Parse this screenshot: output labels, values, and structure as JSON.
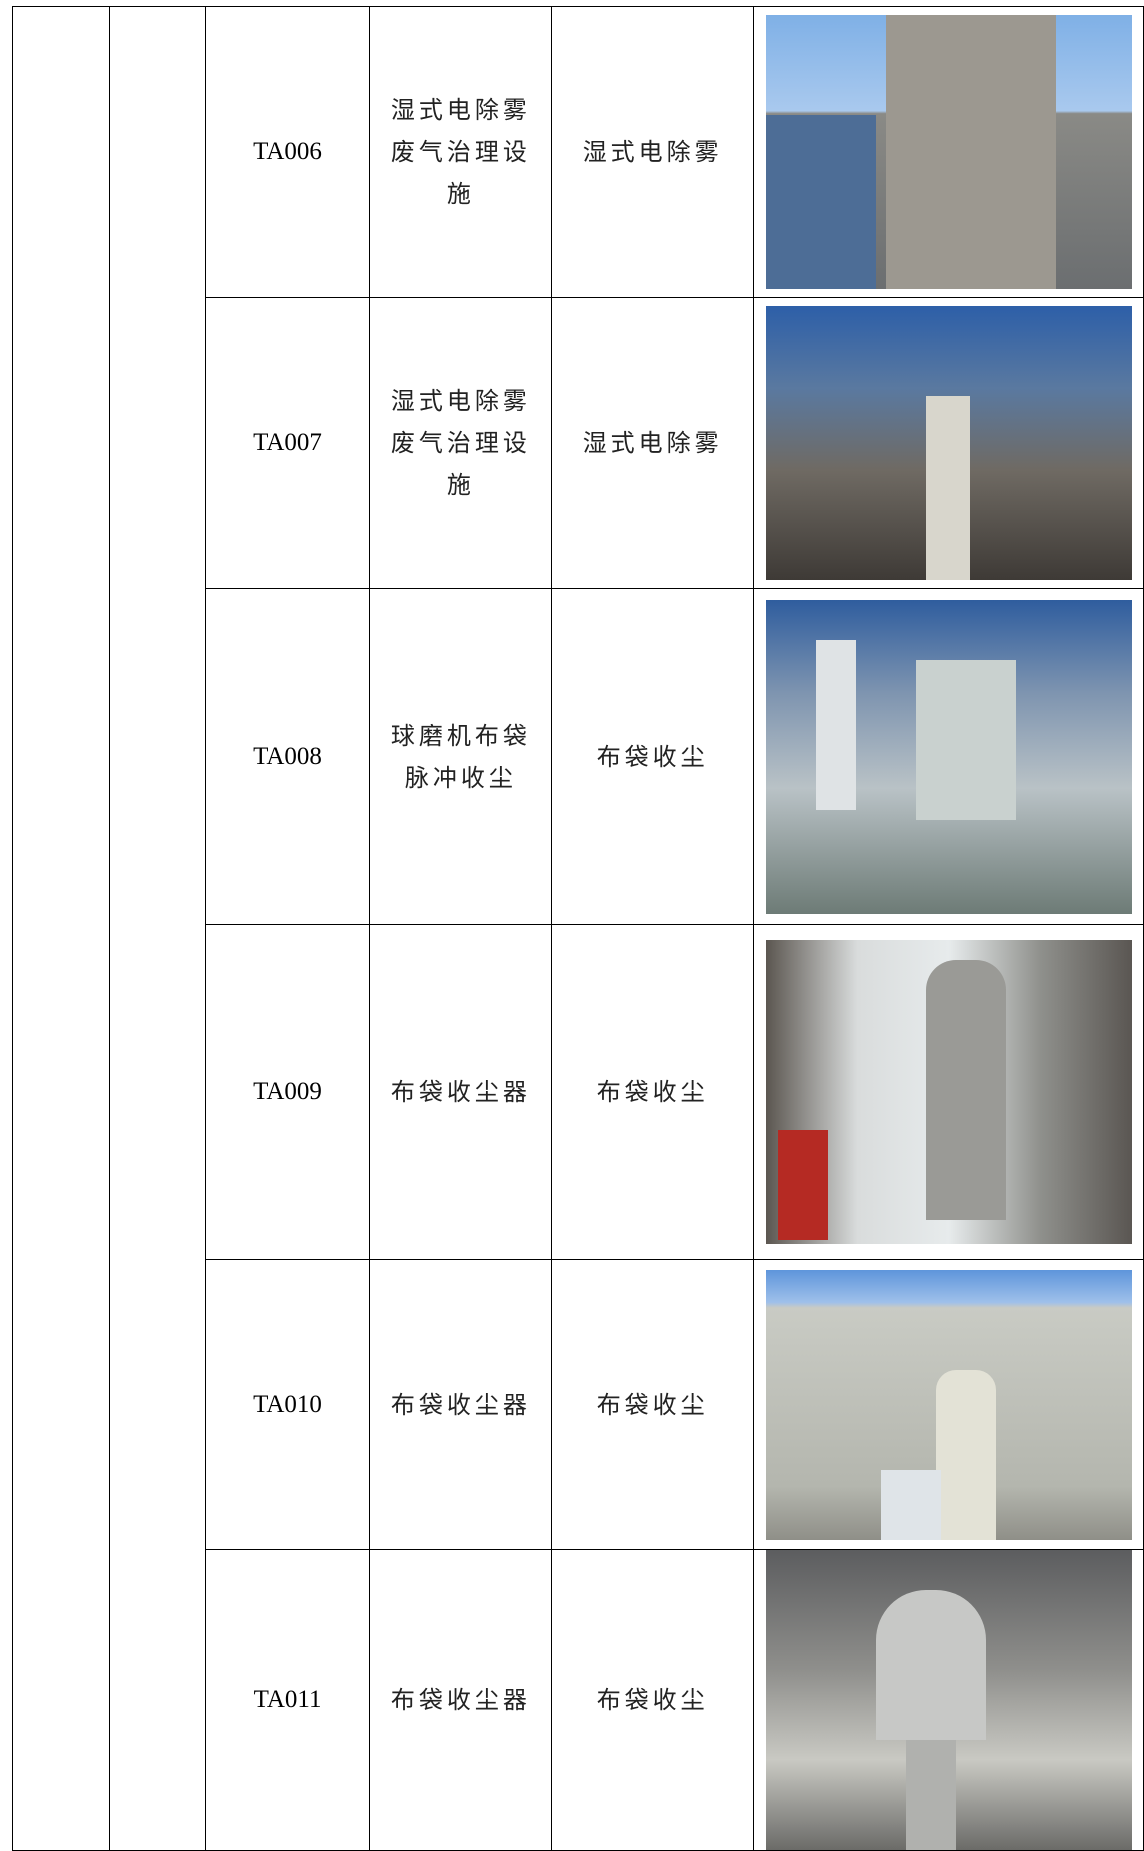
{
  "table": {
    "rows": [
      {
        "code": "TA006",
        "name": "湿式电除雾废气治理设施",
        "method": "湿式电除雾"
      },
      {
        "code": "TA007",
        "name": "湿式电除雾废气治理设施",
        "method": "湿式电除雾"
      },
      {
        "code": "TA008",
        "name": "球磨机布袋脉冲收尘",
        "method": "布袋收尘"
      },
      {
        "code": "TA009",
        "name": "布袋收尘器",
        "method": "布袋收尘"
      },
      {
        "code": "TA010",
        "name": "布袋收尘器",
        "method": "布袋收尘"
      },
      {
        "code": "TA011",
        "name": "布袋收尘器",
        "method": "布袋收尘"
      }
    ]
  }
}
